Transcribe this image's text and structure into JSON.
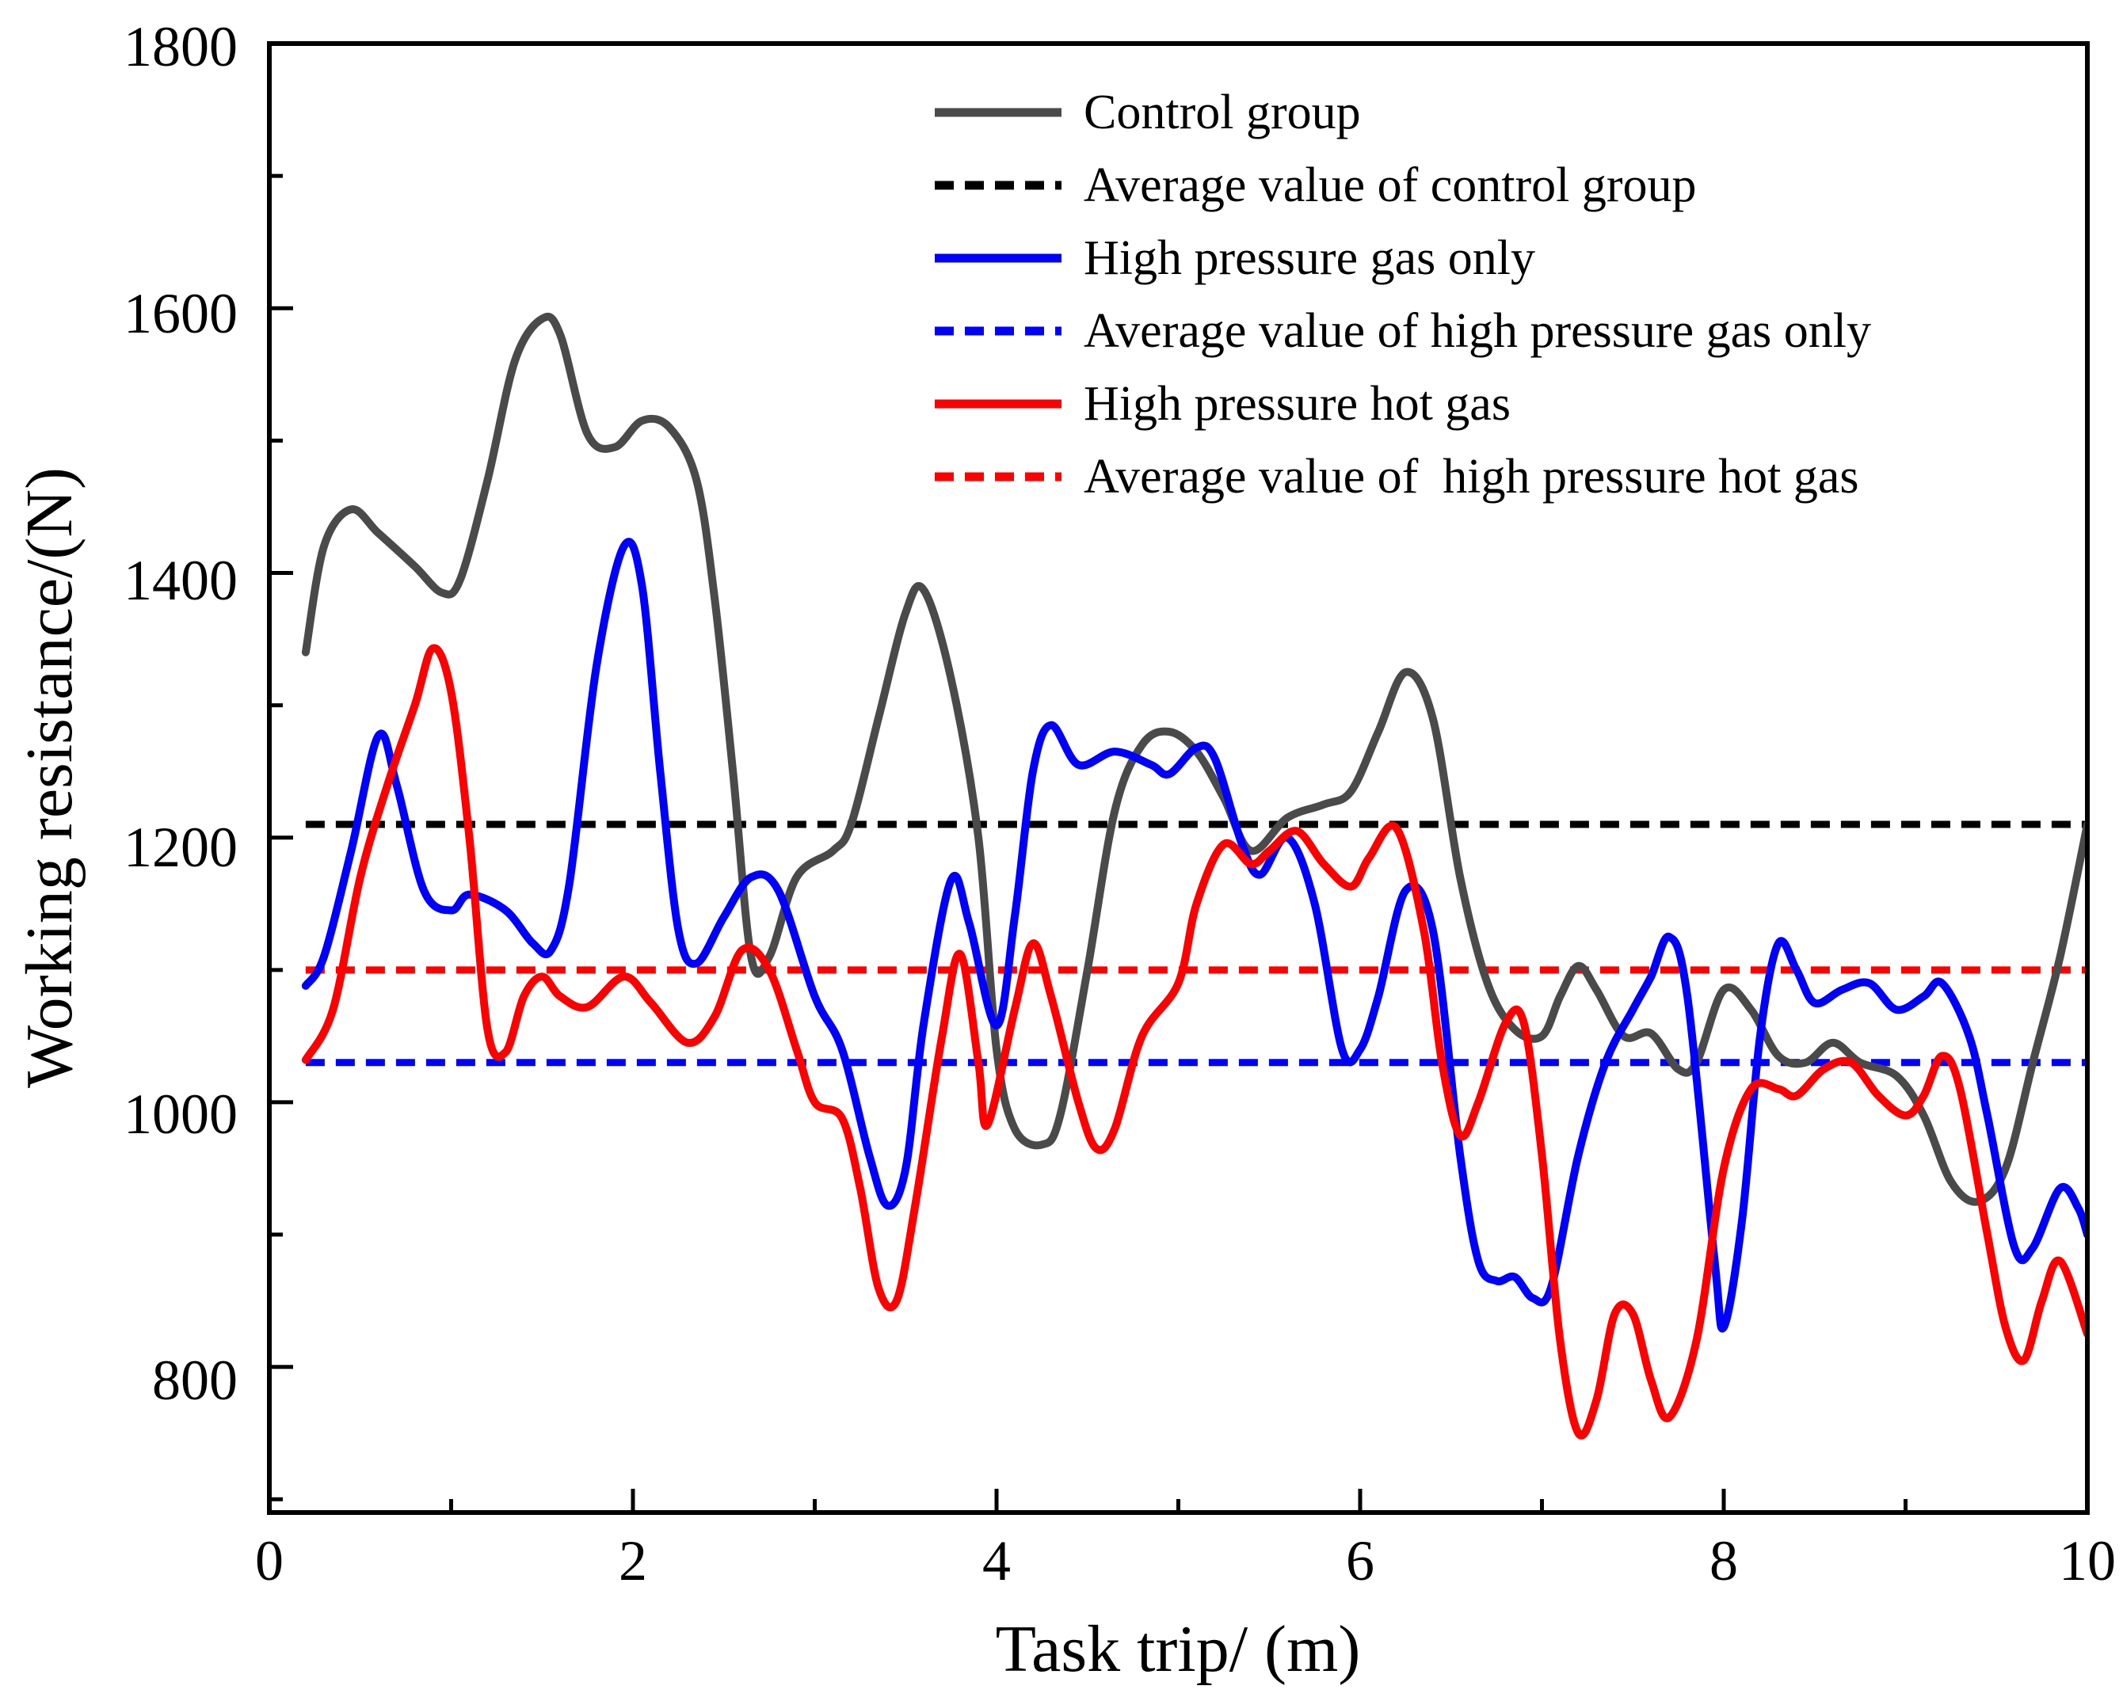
{
  "chart_data": {
    "type": "line",
    "title": "",
    "xlabel": "Task trip/ (m)",
    "ylabel": "Working resistance/(N)",
    "xlim": [
      0,
      10
    ],
    "ylim": [
      690,
      1800
    ],
    "xticks": [
      0,
      2,
      4,
      6,
      8,
      10
    ],
    "yticks": [
      800,
      1000,
      1200,
      1400,
      1600,
      1800
    ],
    "xtick_labels": [
      "0",
      "2",
      "4",
      "6",
      "8",
      "10"
    ],
    "ytick_labels": [
      "800",
      "1000",
      "1200",
      "1400",
      "1600",
      "1800"
    ],
    "grid": false,
    "legend_position": "top-right",
    "series": [
      {
        "name": "Control group",
        "style": "solid",
        "color": "#4a4a4a",
        "points": [
          [
            0.2,
            1340
          ],
          [
            0.3,
            1420
          ],
          [
            0.45,
            1448
          ],
          [
            0.6,
            1430
          ],
          [
            0.8,
            1405
          ],
          [
            0.95,
            1385
          ],
          [
            1.05,
            1395
          ],
          [
            1.2,
            1470
          ],
          [
            1.35,
            1560
          ],
          [
            1.5,
            1592
          ],
          [
            1.6,
            1580
          ],
          [
            1.75,
            1505
          ],
          [
            1.9,
            1495
          ],
          [
            2.05,
            1515
          ],
          [
            2.2,
            1510
          ],
          [
            2.35,
            1470
          ],
          [
            2.45,
            1380
          ],
          [
            2.55,
            1250
          ],
          [
            2.65,
            1110
          ],
          [
            2.75,
            1110
          ],
          [
            2.9,
            1170
          ],
          [
            3.1,
            1190
          ],
          [
            3.2,
            1210
          ],
          [
            3.35,
            1290
          ],
          [
            3.5,
            1370
          ],
          [
            3.6,
            1387
          ],
          [
            3.75,
            1320
          ],
          [
            3.9,
            1200
          ],
          [
            4.0,
            1040
          ],
          [
            4.1,
            980
          ],
          [
            4.25,
            968
          ],
          [
            4.35,
            990
          ],
          [
            4.5,
            1100
          ],
          [
            4.65,
            1220
          ],
          [
            4.8,
            1270
          ],
          [
            4.95,
            1280
          ],
          [
            5.1,
            1265
          ],
          [
            5.25,
            1230
          ],
          [
            5.4,
            1190
          ],
          [
            5.6,
            1215
          ],
          [
            5.8,
            1225
          ],
          [
            5.95,
            1235
          ],
          [
            6.1,
            1280
          ],
          [
            6.25,
            1325
          ],
          [
            6.4,
            1290
          ],
          [
            6.55,
            1170
          ],
          [
            6.7,
            1090
          ],
          [
            6.85,
            1055
          ],
          [
            7.0,
            1050
          ],
          [
            7.1,
            1080
          ],
          [
            7.2,
            1103
          ],
          [
            7.3,
            1085
          ],
          [
            7.45,
            1050
          ],
          [
            7.6,
            1052
          ],
          [
            7.75,
            1025
          ],
          [
            7.85,
            1030
          ],
          [
            8.0,
            1085
          ],
          [
            8.15,
            1070
          ],
          [
            8.3,
            1035
          ],
          [
            8.45,
            1030
          ],
          [
            8.6,
            1045
          ],
          [
            8.75,
            1030
          ],
          [
            8.95,
            1020
          ],
          [
            9.1,
            990
          ],
          [
            9.25,
            940
          ],
          [
            9.4,
            925
          ],
          [
            9.55,
            950
          ],
          [
            9.7,
            1030
          ],
          [
            9.85,
            1110
          ],
          [
            10.0,
            1210
          ]
        ]
      },
      {
        "name": "Average value of control group",
        "style": "dashed",
        "color": "#000000",
        "points": [
          [
            0.2,
            1210
          ],
          [
            10.0,
            1210
          ]
        ]
      },
      {
        "name": "High pressure gas only",
        "style": "solid",
        "color": "#0000ff",
        "points": [
          [
            0.2,
            1088
          ],
          [
            0.3,
            1110
          ],
          [
            0.45,
            1190
          ],
          [
            0.6,
            1277
          ],
          [
            0.7,
            1240
          ],
          [
            0.85,
            1160
          ],
          [
            1.0,
            1145
          ],
          [
            1.1,
            1157
          ],
          [
            1.3,
            1145
          ],
          [
            1.45,
            1120
          ],
          [
            1.55,
            1115
          ],
          [
            1.65,
            1165
          ],
          [
            1.8,
            1330
          ],
          [
            1.95,
            1420
          ],
          [
            2.05,
            1390
          ],
          [
            2.15,
            1250
          ],
          [
            2.25,
            1130
          ],
          [
            2.35,
            1105
          ],
          [
            2.5,
            1140
          ],
          [
            2.65,
            1170
          ],
          [
            2.8,
            1160
          ],
          [
            3.0,
            1080
          ],
          [
            3.15,
            1040
          ],
          [
            3.3,
            960
          ],
          [
            3.4,
            922
          ],
          [
            3.5,
            950
          ],
          [
            3.6,
            1060
          ],
          [
            3.75,
            1168
          ],
          [
            3.85,
            1135
          ],
          [
            4.0,
            1058
          ],
          [
            4.1,
            1140
          ],
          [
            4.2,
            1250
          ],
          [
            4.3,
            1285
          ],
          [
            4.45,
            1255
          ],
          [
            4.65,
            1265
          ],
          [
            4.85,
            1255
          ],
          [
            4.95,
            1248
          ],
          [
            5.1,
            1268
          ],
          [
            5.2,
            1260
          ],
          [
            5.35,
            1195
          ],
          [
            5.45,
            1172
          ],
          [
            5.6,
            1200
          ],
          [
            5.75,
            1150
          ],
          [
            5.9,
            1040
          ],
          [
            6.0,
            1040
          ],
          [
            6.1,
            1080
          ],
          [
            6.25,
            1160
          ],
          [
            6.4,
            1130
          ],
          [
            6.55,
            960
          ],
          [
            6.65,
            880
          ],
          [
            6.75,
            865
          ],
          [
            6.85,
            868
          ],
          [
            6.95,
            852
          ],
          [
            7.05,
            860
          ],
          [
            7.2,
            960
          ],
          [
            7.35,
            1030
          ],
          [
            7.5,
            1070
          ],
          [
            7.6,
            1095
          ],
          [
            7.7,
            1125
          ],
          [
            7.8,
            1080
          ],
          [
            7.95,
            880
          ],
          [
            8.0,
            830
          ],
          [
            8.1,
            910
          ],
          [
            8.2,
            1050
          ],
          [
            8.3,
            1120
          ],
          [
            8.4,
            1100
          ],
          [
            8.5,
            1075
          ],
          [
            8.65,
            1085
          ],
          [
            8.8,
            1090
          ],
          [
            8.95,
            1070
          ],
          [
            9.1,
            1080
          ],
          [
            9.2,
            1090
          ],
          [
            9.35,
            1050
          ],
          [
            9.45,
            990
          ],
          [
            9.6,
            890
          ],
          [
            9.7,
            890
          ],
          [
            9.85,
            935
          ],
          [
            9.95,
            920
          ],
          [
            10.0,
            900
          ]
        ]
      },
      {
        "name": "Average value of high pressure gas only",
        "style": "dashed",
        "color": "#0000ff",
        "points": [
          [
            0.2,
            1030
          ],
          [
            10.0,
            1030
          ]
        ]
      },
      {
        "name": "High pressure hot gas",
        "style": "solid",
        "color": "#ff0000",
        "points": [
          [
            0.2,
            1032
          ],
          [
            0.35,
            1070
          ],
          [
            0.5,
            1170
          ],
          [
            0.65,
            1240
          ],
          [
            0.8,
            1300
          ],
          [
            0.9,
            1343
          ],
          [
            1.0,
            1310
          ],
          [
            1.1,
            1200
          ],
          [
            1.2,
            1055
          ],
          [
            1.3,
            1038
          ],
          [
            1.4,
            1080
          ],
          [
            1.5,
            1095
          ],
          [
            1.6,
            1080
          ],
          [
            1.75,
            1072
          ],
          [
            1.95,
            1095
          ],
          [
            2.1,
            1075
          ],
          [
            2.3,
            1045
          ],
          [
            2.45,
            1065
          ],
          [
            2.6,
            1115
          ],
          [
            2.75,
            1100
          ],
          [
            2.9,
            1040
          ],
          [
            3.0,
            1000
          ],
          [
            3.15,
            988
          ],
          [
            3.25,
            935
          ],
          [
            3.35,
            860
          ],
          [
            3.45,
            850
          ],
          [
            3.55,
            920
          ],
          [
            3.7,
            1050
          ],
          [
            3.8,
            1112
          ],
          [
            3.9,
            1030
          ],
          [
            3.95,
            983
          ],
          [
            4.1,
            1070
          ],
          [
            4.2,
            1120
          ],
          [
            4.3,
            1080
          ],
          [
            4.45,
            1000
          ],
          [
            4.55,
            965
          ],
          [
            4.65,
            980
          ],
          [
            4.8,
            1050
          ],
          [
            5.0,
            1090
          ],
          [
            5.1,
            1150
          ],
          [
            5.25,
            1195
          ],
          [
            5.4,
            1180
          ],
          [
            5.5,
            1190
          ],
          [
            5.65,
            1205
          ],
          [
            5.8,
            1180
          ],
          [
            5.95,
            1163
          ],
          [
            6.05,
            1185
          ],
          [
            6.2,
            1207
          ],
          [
            6.35,
            1130
          ],
          [
            6.45,
            1030
          ],
          [
            6.55,
            975
          ],
          [
            6.65,
            1000
          ],
          [
            6.8,
            1060
          ],
          [
            6.9,
            1060
          ],
          [
            7.0,
            960
          ],
          [
            7.1,
            820
          ],
          [
            7.2,
            750
          ],
          [
            7.3,
            775
          ],
          [
            7.4,
            840
          ],
          [
            7.5,
            840
          ],
          [
            7.6,
            790
          ],
          [
            7.7,
            762
          ],
          [
            7.85,
            820
          ],
          [
            8.0,
            950
          ],
          [
            8.15,
            1010
          ],
          [
            8.3,
            1010
          ],
          [
            8.4,
            1005
          ],
          [
            8.55,
            1025
          ],
          [
            8.7,
            1030
          ],
          [
            8.85,
            1005
          ],
          [
            9.0,
            990
          ],
          [
            9.1,
            1005
          ],
          [
            9.2,
            1035
          ],
          [
            9.3,
            1010
          ],
          [
            9.45,
            900
          ],
          [
            9.55,
            830
          ],
          [
            9.65,
            805
          ],
          [
            9.75,
            850
          ],
          [
            9.85,
            880
          ],
          [
            10.0,
            825
          ]
        ]
      },
      {
        "name": "Average value of  high pressure hot gas",
        "style": "dashed",
        "color": "#ff0000",
        "points": [
          [
            0.2,
            1100
          ],
          [
            10.0,
            1100
          ]
        ]
      }
    ]
  }
}
